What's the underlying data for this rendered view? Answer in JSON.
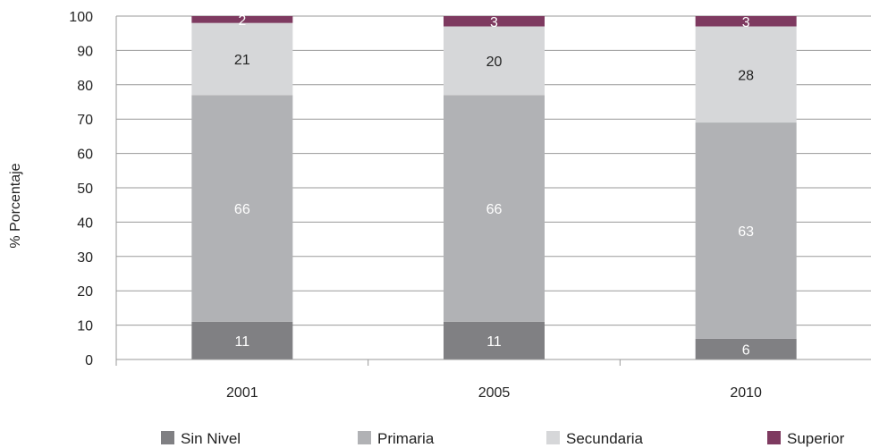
{
  "chart_data": {
    "type": "bar",
    "stacked": true,
    "categories": [
      "2001",
      "2005",
      "2010"
    ],
    "series": [
      {
        "name": "Sin Nivel",
        "values": [
          11,
          11,
          6
        ],
        "color": "#808083",
        "label_color": "#ffffff"
      },
      {
        "name": "Primaria",
        "values": [
          66,
          66,
          63
        ],
        "color": "#b1b2b5",
        "label_color": "#ffffff"
      },
      {
        "name": "Secundaria",
        "values": [
          21,
          20,
          28
        ],
        "color": "#d6d7d9",
        "label_color": "#222222"
      },
      {
        "name": "Superior",
        "values": [
          2,
          3,
          3
        ],
        "color": "#7e3a60",
        "label_color": "#ffffff"
      }
    ],
    "title": "",
    "xlabel": "",
    "ylabel": "%  Porcentaje",
    "ylim": [
      0,
      100
    ],
    "yticks": [
      0,
      10,
      20,
      30,
      40,
      50,
      60,
      70,
      80,
      90,
      100
    ],
    "grid": true,
    "legend_position": "bottom"
  }
}
